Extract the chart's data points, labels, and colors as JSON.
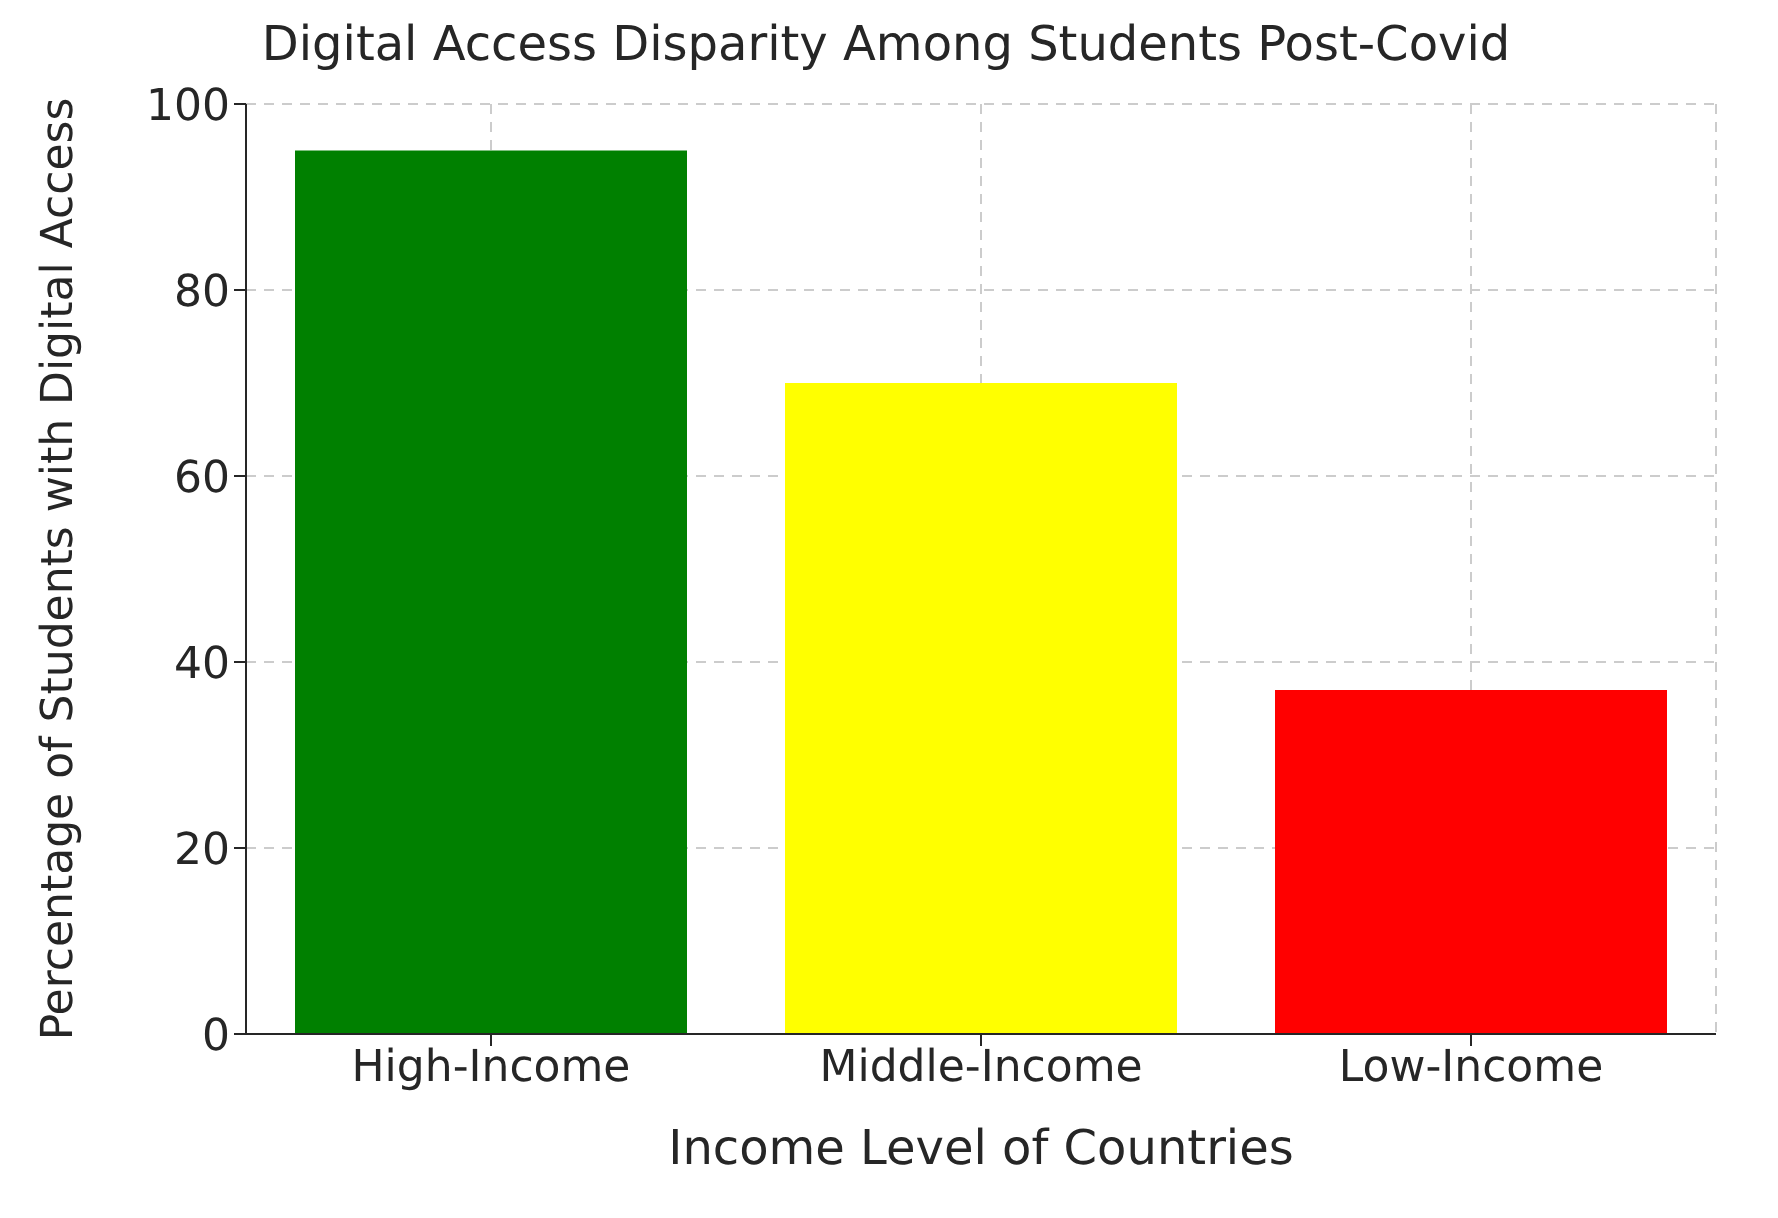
{
  "chart_data": {
    "type": "bar",
    "title": "Digital Access Disparity Among Students Post-Covid",
    "xlabel": "Income Level of Countries",
    "ylabel": "Percentage of Students with Digital Access",
    "categories": [
      "High-Income",
      "Middle-Income",
      "Low-Income"
    ],
    "values": [
      95,
      70,
      37
    ],
    "colors": [
      "#008000",
      "#ffff00",
      "#ff0000"
    ],
    "ylim": [
      0,
      100
    ],
    "yticks": [
      0,
      20,
      40,
      60,
      80,
      100
    ],
    "grid": true
  }
}
